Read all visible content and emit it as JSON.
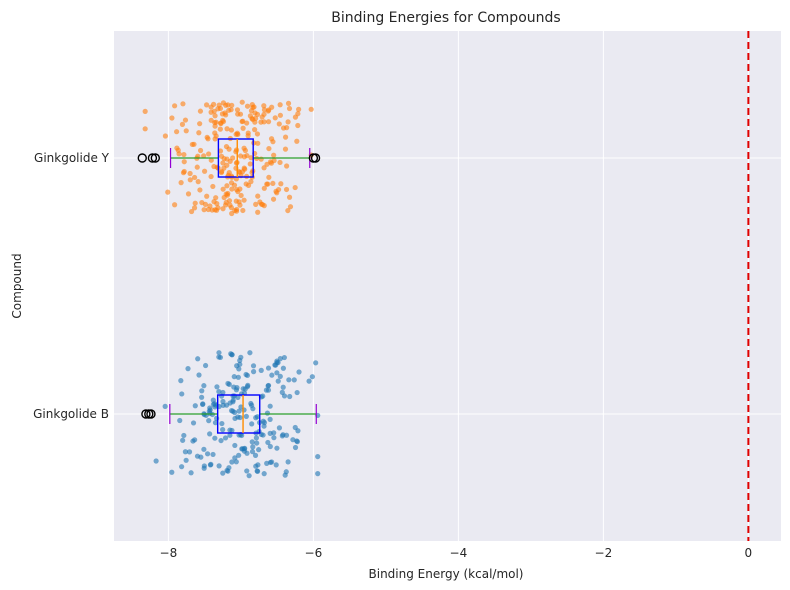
{
  "chart_data": {
    "type": "scatter",
    "title": "Binding Energies for Compounds",
    "xlabel": "Binding Energy (kcal/mol)",
    "ylabel": "Compound",
    "xlim": [
      -8.75,
      0.45
    ],
    "x_ticks": [
      -8,
      -6,
      -4,
      -2,
      0
    ],
    "x_tick_labels": [
      "−8",
      "−6",
      "−4",
      "−2",
      "0"
    ],
    "categories": [
      "Ginkgolide B",
      "Ginkgolide Y"
    ],
    "grid": true,
    "reference_line": {
      "x": 0,
      "color": "#e00000",
      "style": "dashed"
    },
    "series": [
      {
        "category": "Ginkgolide B",
        "color": "#1f77b4",
        "n_points": 220,
        "box": {
          "whisker_low": -7.98,
          "q1": -7.32,
          "median": -6.97,
          "q3": -6.74,
          "whisker_high": -5.96
        },
        "outliers": [
          -8.31,
          -8.27,
          -8.24
        ]
      },
      {
        "category": "Ginkgolide Y",
        "color": "#ff7f0e",
        "n_points": 260,
        "box": {
          "whisker_low": -7.97,
          "q1": -7.31,
          "median": -7.05,
          "q3": -6.83,
          "whisker_high": -6.05
        },
        "outliers": [
          -8.36,
          -8.22,
          -8.18,
          -6.0,
          -5.97
        ]
      }
    ]
  },
  "colors": {
    "plot_background": "#eaeaf2",
    "grid": "#ffffff",
    "box_edge": "#0000ff",
    "whisker": "#2ca02c",
    "cap": "#9400d3",
    "median": "#ff8c00",
    "outlier_edge": "#000000"
  }
}
